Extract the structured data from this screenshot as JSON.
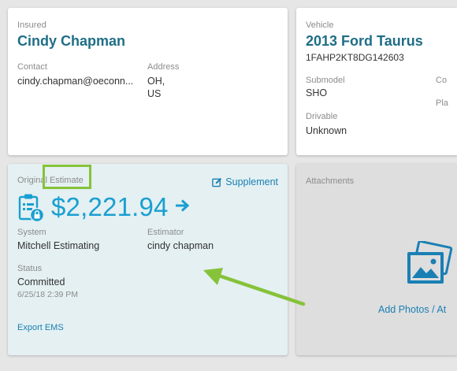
{
  "insured": {
    "section_label": "Insured",
    "name": "Cindy Chapman",
    "contact_label": "Contact",
    "contact_value": "cindy.chapman@oeconn...",
    "address_label": "Address",
    "address_line1": "OH,",
    "address_line2": "US"
  },
  "vehicle": {
    "section_label": "Vehicle",
    "title": "2013 Ford Taurus",
    "vin": "1FAHP2KT8DG142603",
    "submodel_label": "Submodel",
    "submodel_value": "SHO",
    "drivable_label": "Drivable",
    "drivable_value": "Unknown",
    "col_label_partial": "Co",
    "plate_label_partial": "Pla"
  },
  "estimate": {
    "section_label": "Original Estimate",
    "supplement_label": "Supplement",
    "amount": "$2,221.94",
    "system_label": "System",
    "system_value": "Mitchell Estimating",
    "estimator_label": "Estimator",
    "estimator_value": "cindy chapman",
    "status_label": "Status",
    "status_value": "Committed",
    "status_timestamp": "6/25/18 2:39 PM",
    "export_label": "Export EMS"
  },
  "attachments": {
    "section_label": "Attachments",
    "add_photos_label": "Add Photos / At"
  },
  "colors": {
    "accent_blue": "#1a9fd1",
    "link_blue": "#1a7fb4",
    "name_teal": "#1f6e86",
    "highlight_green": "#86c23a"
  },
  "icons": {
    "estimate": "clipboard-lock-icon",
    "supplement": "edit-icon",
    "amount_arrow": "arrow-right-icon",
    "attachments": "photos-icon"
  }
}
